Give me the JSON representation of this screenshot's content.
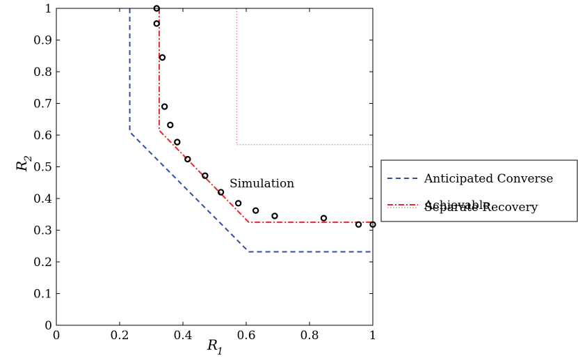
{
  "chart_data": {
    "type": "line",
    "xlabel": "R",
    "xlabel_sub": "1",
    "ylabel": "R",
    "ylabel_sub": "2",
    "xlim": [
      0,
      1
    ],
    "ylim": [
      0,
      1
    ],
    "xticks": [
      0,
      0.2,
      0.4,
      0.6,
      0.8,
      1
    ],
    "xtick_labels": [
      "0",
      "0.2",
      "0.4",
      "0.6",
      "0.8",
      "1"
    ],
    "yticks": [
      0,
      0.1,
      0.2,
      0.3,
      0.4,
      0.5,
      0.6,
      0.7,
      0.8,
      0.9,
      1
    ],
    "ytick_labels": [
      "0",
      "0.1",
      "0.2",
      "0.3",
      "0.4",
      "0.5",
      "0.6",
      "0.7",
      "0.8",
      "0.9",
      "1"
    ],
    "grid": false,
    "legend_position": "outside-right",
    "annotation": "Simulation",
    "series": [
      {
        "name": "Anticipated Converse",
        "style": "dashed",
        "color": "#2e4fa3",
        "x": [
          0.232,
          0.232,
          0.608,
          1.0
        ],
        "y": [
          1.0,
          0.61,
          0.232,
          0.232
        ]
      },
      {
        "name": "Achievable",
        "style": "dashdot",
        "color": "#e8262b",
        "x": [
          0.325,
          0.325,
          0.608,
          1.0
        ],
        "y": [
          1.0,
          0.615,
          0.325,
          0.325
        ]
      },
      {
        "name": "Separate Recovery",
        "style": "dotted",
        "color": "#e57fbf",
        "x": [
          0.57,
          0.57,
          1.0
        ],
        "y": [
          1.0,
          0.57,
          0.57
        ]
      },
      {
        "name": "",
        "style": "markers",
        "color": "#000000",
        "x": [
          0.317,
          0.317,
          0.335,
          0.342,
          0.36,
          0.382,
          0.415,
          0.47,
          0.52,
          0.575,
          0.63,
          0.69,
          0.845,
          0.955,
          1.0
        ],
        "y": [
          1.0,
          0.952,
          0.845,
          0.69,
          0.632,
          0.578,
          0.524,
          0.472,
          0.42,
          0.385,
          0.362,
          0.345,
          0.338,
          0.318,
          0.318
        ]
      }
    ]
  }
}
